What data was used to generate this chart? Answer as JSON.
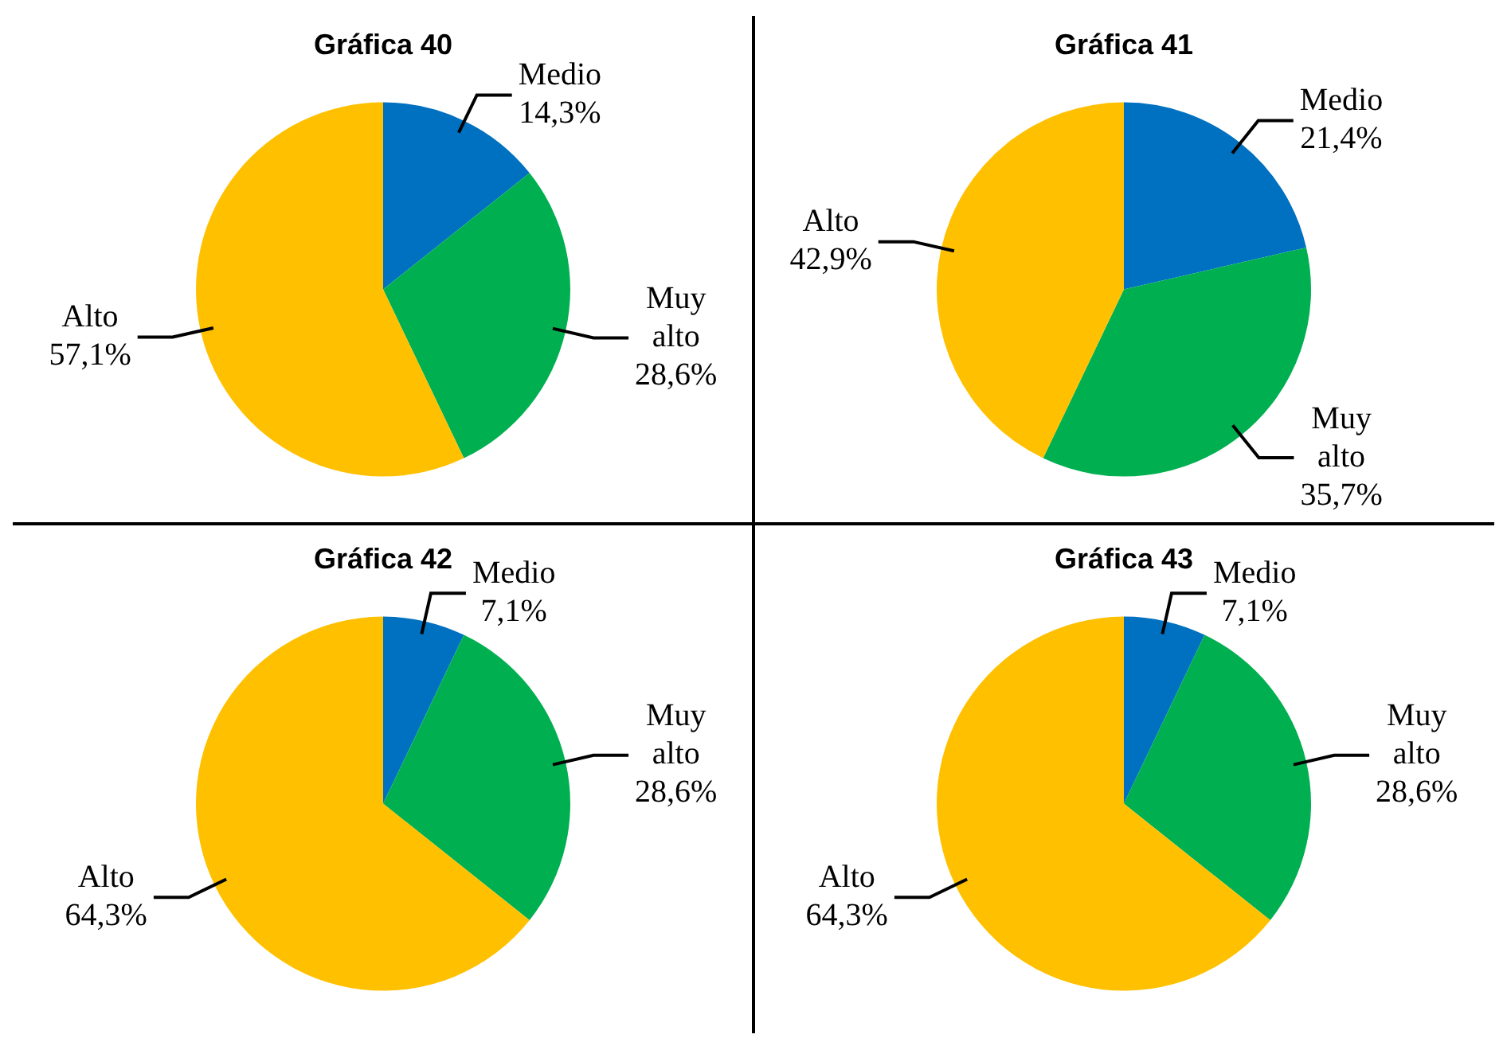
{
  "chart_data": [
    {
      "type": "pie",
      "title": "Gráfica 40",
      "categories": [
        "Medio",
        "Muy alto",
        "Alto"
      ],
      "values": [
        14.3,
        28.6,
        57.1
      ],
      "colors": [
        "#0070c0",
        "#00b050",
        "#ffc000"
      ],
      "value_labels": [
        "14,3%",
        "28,6%",
        "57,1%"
      ]
    },
    {
      "type": "pie",
      "title": "Gráfica 41",
      "categories": [
        "Medio",
        "Muy alto",
        "Alto"
      ],
      "values": [
        21.4,
        35.7,
        42.9
      ],
      "colors": [
        "#0070c0",
        "#00b050",
        "#ffc000"
      ],
      "value_labels": [
        "21,4%",
        "35,7%",
        "42,9%"
      ]
    },
    {
      "type": "pie",
      "title": "Gráfica 42",
      "categories": [
        "Medio",
        "Muy alto",
        "Alto"
      ],
      "values": [
        7.1,
        28.6,
        64.3
      ],
      "colors": [
        "#0070c0",
        "#00b050",
        "#ffc000"
      ],
      "value_labels": [
        "7,1%",
        "28,6%",
        "64,3%"
      ]
    },
    {
      "type": "pie",
      "title": "Gráfica 43",
      "categories": [
        "Medio",
        "Muy alto",
        "Alto"
      ],
      "values": [
        7.1,
        28.6,
        64.3
      ],
      "colors": [
        "#0070c0",
        "#00b050",
        "#ffc000"
      ],
      "value_labels": [
        "7,1%",
        "28,6%",
        "64,3%"
      ]
    }
  ]
}
